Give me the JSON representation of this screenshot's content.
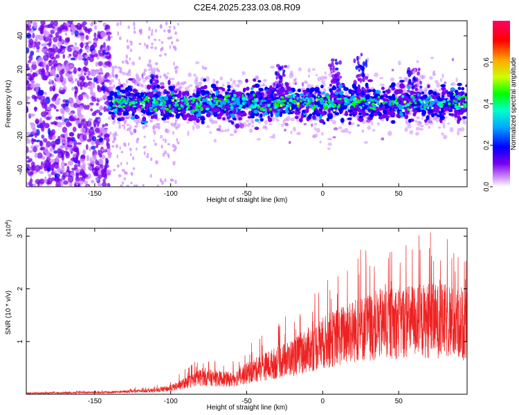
{
  "figure_title": "C2E4.2025.233.03.08.R09",
  "colors": {
    "snr_line": "#ee2222",
    "axis": "#000000"
  },
  "chart_data": [
    {
      "type": "heatmap",
      "name": "spectrogram",
      "xlabel": "Height of straight line (km)",
      "ylabel": "Frequency (Hz)",
      "xlim": [
        -195,
        95
      ],
      "ylim": [
        -50,
        49
      ],
      "x_ticks": [
        -150,
        -100,
        -50,
        0,
        50
      ],
      "x_tick_labels": [
        "-150",
        "-100",
        "-50",
        "0",
        "50"
      ],
      "y_ticks": [
        -40,
        -20,
        0,
        20,
        40
      ],
      "y_tick_labels": [
        "-40",
        "-20",
        "0",
        "20",
        "40"
      ],
      "colorbar": {
        "label": "Normalized spectral amplitude",
        "range": [
          0.0,
          0.8
        ],
        "ticks": [
          0.0,
          0.2,
          0.4,
          0.6
        ],
        "tick_labels": [
          "0.0",
          "0.2",
          "0.4",
          "0.6"
        ],
        "colormap": [
          "#ffffff",
          "#cc88ff",
          "#7700ee",
          "#0000ff",
          "#00aaff",
          "#00ffcc",
          "#00ff00",
          "#ccff00",
          "#ffaa00",
          "#ff0000",
          "#ff0066"
        ]
      },
      "noise_region_until_km": -140,
      "band_center_hz": 0,
      "band_halfwidth_hz": 6,
      "spikes": [
        {
          "x": -28,
          "top": 24
        },
        {
          "x": 8,
          "top": 26
        },
        {
          "x": 25,
          "top": 30
        },
        {
          "x": 60,
          "top": 20
        },
        {
          "x": -110,
          "top": 16
        }
      ]
    },
    {
      "type": "line",
      "name": "snr",
      "xlabel": "Height of straight line (km)",
      "ylabel": "SNR (10 * v/v)",
      "y_scale_label_base": "(x10",
      "y_scale_label_exp": "4",
      "y_scale_label_end": ")",
      "xlim": [
        -195,
        95
      ],
      "ylim": [
        0,
        3.15
      ],
      "x_ticks": [
        -150,
        -100,
        -50,
        0,
        50
      ],
      "x_tick_labels": [
        "-150",
        "-100",
        "-50",
        "0",
        "50"
      ],
      "y_ticks": [
        1,
        2,
        3
      ],
      "y_tick_labels": [
        "1",
        "2",
        "3"
      ],
      "envelope_x": [
        -195,
        -140,
        -110,
        -100,
        -80,
        -60,
        -40,
        -20,
        0,
        20,
        40,
        60,
        80,
        95
      ],
      "envelope_y": [
        0.02,
        0.04,
        0.08,
        0.12,
        0.35,
        0.3,
        0.55,
        0.75,
        1.05,
        1.3,
        1.45,
        1.5,
        1.5,
        1.4
      ]
    }
  ]
}
